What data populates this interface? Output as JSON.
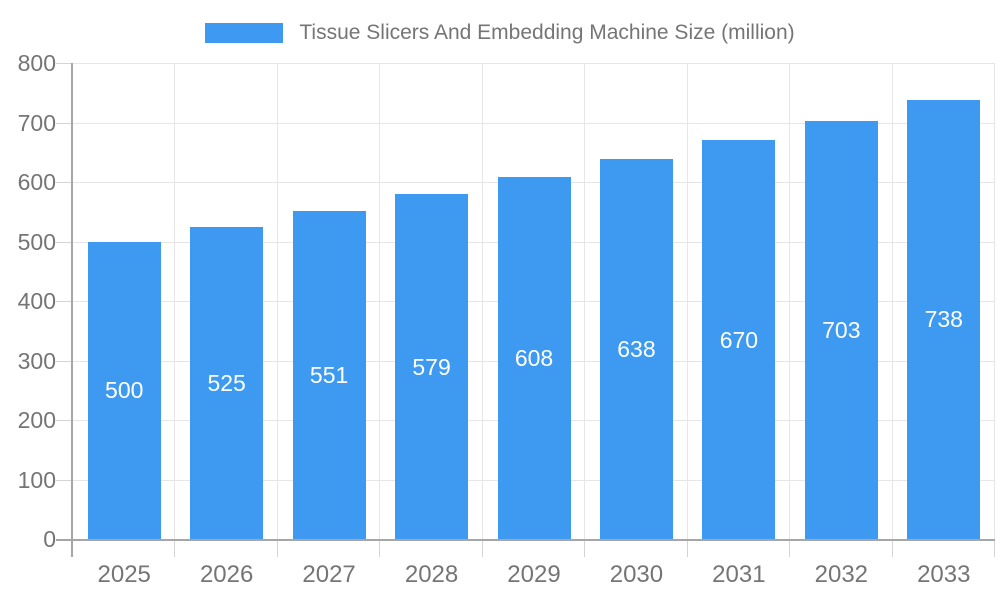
{
  "legend": {
    "label": "Tissue Slicers And Embedding Machine Size (million)"
  },
  "colors": {
    "bar": "#3d9af0",
    "label_text": "#757575",
    "value_text": "#ffffff",
    "grid": "#e6e6e6",
    "tick": "#d4d4d4",
    "axis": "#a6a6a6",
    "background": "#ffffff"
  },
  "chart_data": {
    "type": "bar",
    "title": "Tissue Slicers And Embedding Machine Size (million)",
    "categories": [
      "2025",
      "2026",
      "2027",
      "2028",
      "2029",
      "2030",
      "2031",
      "2032",
      "2033"
    ],
    "values": [
      500,
      525,
      551,
      579,
      608,
      638,
      670,
      703,
      738
    ],
    "xlabel": "",
    "ylabel": "",
    "ylim": [
      0,
      800
    ],
    "ytick_step": 100,
    "yticks": [
      0,
      100,
      200,
      300,
      400,
      500,
      600,
      700,
      800
    ],
    "grid": "on",
    "legend_position": "top-center",
    "value_label_position": "inside-center",
    "bar_color": "#3d9af0"
  }
}
